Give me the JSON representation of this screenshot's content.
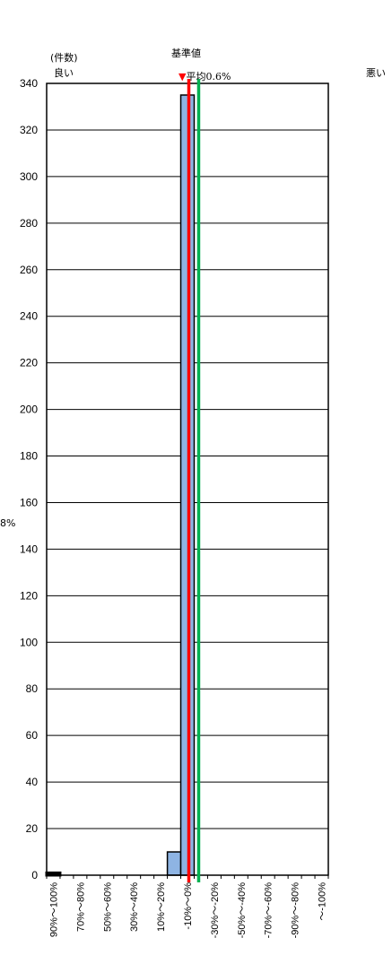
{
  "chart_data": {
    "type": "bar",
    "ylabel": "(件数)",
    "good_label": "良い",
    "bad_label": "悪い",
    "baseline_label": "基準値",
    "average_label": "▼平均",
    "average_value_text": "0.6%",
    "left_clipped_text": "8%",
    "colors": {
      "bar_fill": "#8eb4e3",
      "bar_stroke": "#000000",
      "average_line": "#ff0000",
      "baseline_line": "#00b050",
      "baseline_text": "#00b050",
      "gridline": "#000000"
    },
    "ylim": [
      0,
      340
    ],
    "yticks": [
      "0",
      "20",
      "40",
      "60",
      "80",
      "100",
      "120",
      "140",
      "160",
      "180",
      "200",
      "220",
      "240",
      "260",
      "280",
      "300",
      "320",
      "340"
    ],
    "categories": [
      "90%～100%",
      "",
      "70%～80%",
      "",
      "50%～60%",
      "",
      "30%～40%",
      "",
      "10%～20%",
      "",
      "-10%～0%",
      "",
      "-30%～-20%",
      "",
      "-50%～-40%",
      "",
      "-70%～-60%",
      "",
      "-90%～-80%",
      "",
      "～-100%"
    ],
    "values": [
      1,
      0,
      0,
      0,
      0,
      0,
      0,
      0,
      0,
      10,
      335,
      0,
      0,
      0,
      0,
      0,
      0,
      0,
      0,
      0,
      0
    ],
    "average_position": 10.6,
    "baseline_position": 11.0
  }
}
